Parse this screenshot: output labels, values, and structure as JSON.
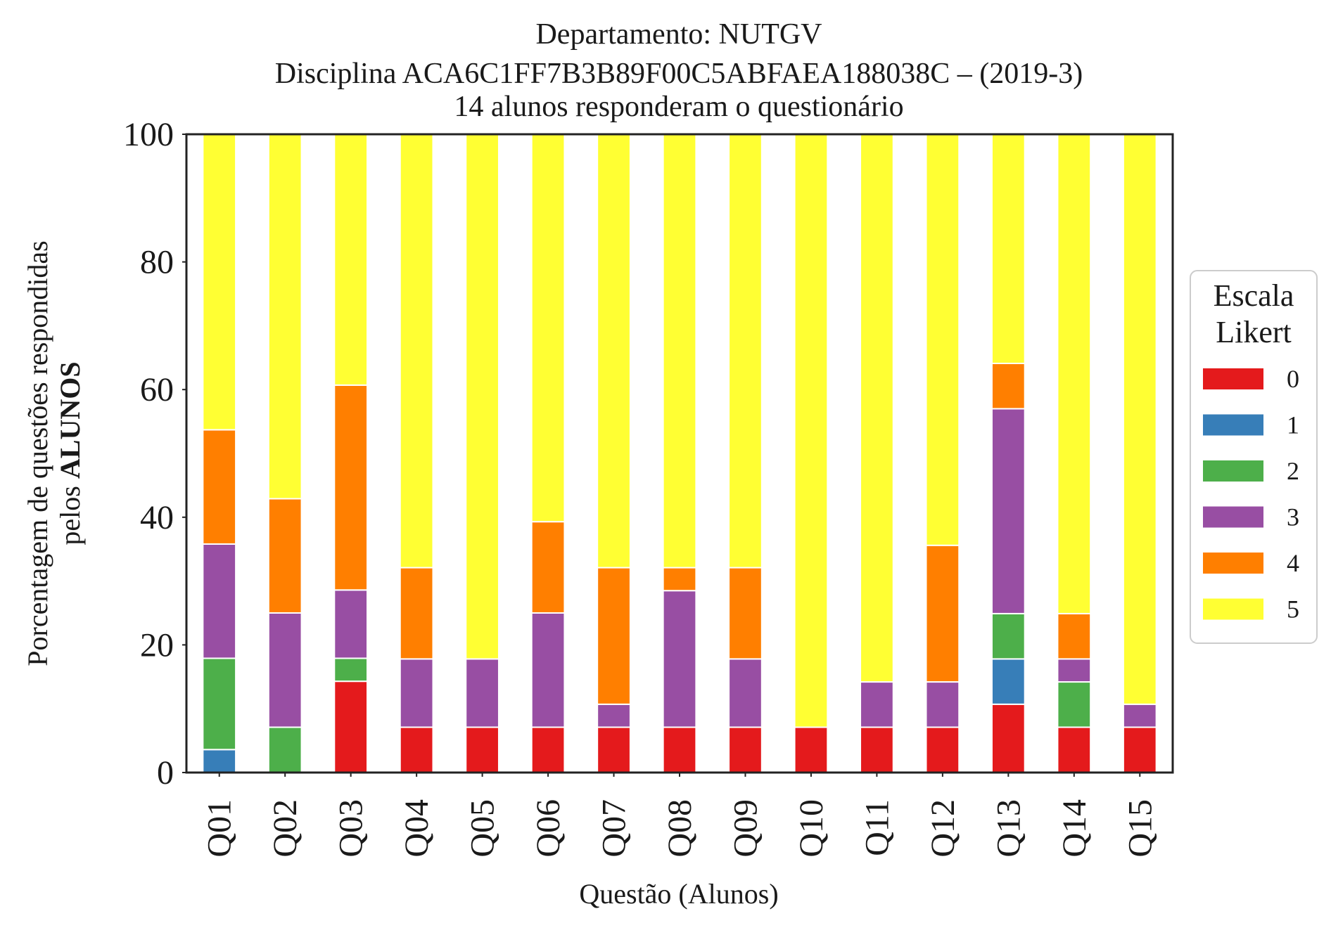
{
  "chart_data": {
    "type": "bar",
    "stacked": true,
    "title_lines": [
      "Departamento: NUTGV",
      "Disciplina ACA6C1FF7B3B89F00C5ABFAEA188038C – (2019-3)",
      "14 alunos responderam o questionário"
    ],
    "xlabel": "Questão (Alunos)",
    "ylabel_line1": "Porcentagem de questões respondidas",
    "ylabel_line2_prefix": "pelos ",
    "ylabel_line2_bold": "ALUNOS",
    "ylim": [
      0,
      100
    ],
    "yticks": [
      "0",
      "20",
      "40",
      "60",
      "80",
      "100"
    ],
    "grid": false,
    "categories": [
      "Q01",
      "Q02",
      "Q03",
      "Q04",
      "Q05",
      "Q06",
      "Q07",
      "Q08",
      "Q09",
      "Q10",
      "Q11",
      "Q12",
      "Q13",
      "Q14",
      "Q15"
    ],
    "legend": {
      "title_lines": [
        "Escala",
        "Likert"
      ],
      "placement": "right"
    },
    "series": [
      {
        "name": "0",
        "color": "#e41a1c",
        "values": [
          0,
          0,
          14.3,
          7.1,
          7.1,
          7.1,
          7.1,
          7.1,
          7.1,
          7.1,
          7.1,
          7.1,
          10.7,
          7.1,
          7.1
        ]
      },
      {
        "name": "1",
        "color": "#377eb8",
        "values": [
          3.6,
          0,
          0,
          0,
          0,
          0,
          0,
          0,
          0,
          0,
          0,
          0,
          7.1,
          0,
          0
        ]
      },
      {
        "name": "2",
        "color": "#4daf4a",
        "values": [
          14.3,
          7.1,
          3.6,
          0,
          0,
          0,
          0,
          0,
          0,
          0,
          0,
          0,
          7.1,
          7.1,
          0
        ]
      },
      {
        "name": "3",
        "color": "#984ea3",
        "values": [
          17.9,
          17.9,
          10.7,
          10.7,
          10.7,
          17.9,
          3.6,
          21.4,
          10.7,
          0,
          7.1,
          7.1,
          32.1,
          3.6,
          3.6
        ]
      },
      {
        "name": "4",
        "color": "#ff7f00",
        "values": [
          17.9,
          17.9,
          32.1,
          14.3,
          0,
          14.3,
          21.4,
          3.6,
          14.3,
          0,
          0,
          21.4,
          7.1,
          7.1,
          0
        ]
      },
      {
        "name": "5",
        "color": "#ffff33",
        "values": [
          46.3,
          57.1,
          39.3,
          67.9,
          82.2,
          60.7,
          67.9,
          67.9,
          67.9,
          92.9,
          85.8,
          64.4,
          35.9,
          75.1,
          89.3
        ]
      }
    ]
  }
}
